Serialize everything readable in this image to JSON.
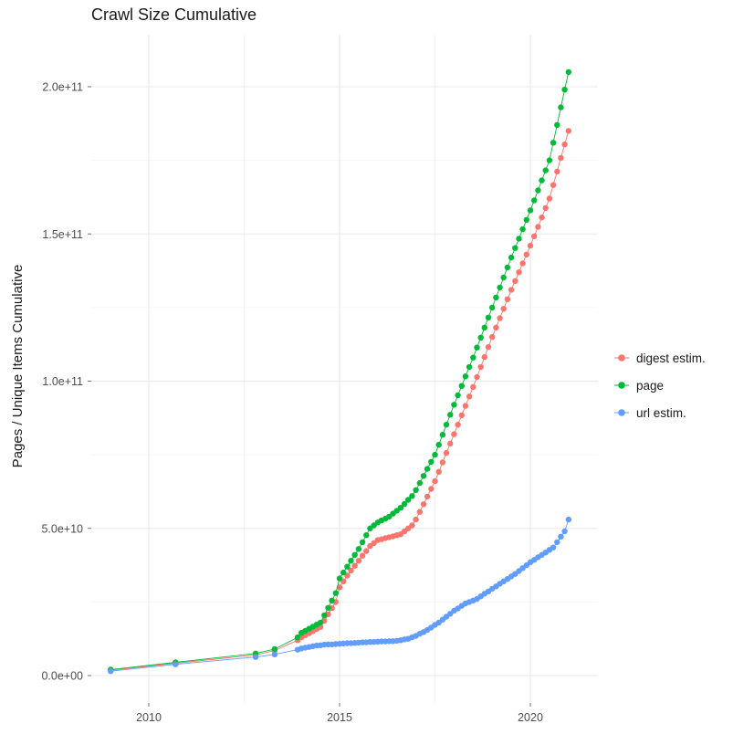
{
  "figure": {
    "background_color": "#ffffff",
    "panel_background": "#ffffff",
    "major_grid_color": "#e8e8e8",
    "minor_grid_color": "#f3f3f3",
    "tick_mark_color": "#707070",
    "tick_label_color": "#4d4d4d"
  },
  "chart_data": {
    "type": "scatter",
    "title": "Crawl Size Cumulative",
    "xlabel": "",
    "ylabel": "Pages / Unique Items Cumulative",
    "legend_position": "right",
    "grid": "major and minor gridlines, light gray on white",
    "x_ticks": [
      {
        "label": "2010",
        "value": 2010
      },
      {
        "label": "2015",
        "value": 2015
      },
      {
        "label": "2020",
        "value": 2020
      }
    ],
    "x_minor": [
      2012.5,
      2017.5
    ],
    "x_range": [
      2008.5,
      2021.8
    ],
    "y_value_unit": "1e9",
    "y_ticks": [
      {
        "label": "0.0e+00",
        "value": 0
      },
      {
        "label": "5.0e+10",
        "value": 50
      },
      {
        "label": "1.0e+11",
        "value": 100
      },
      {
        "label": "1.5e+11",
        "value": 150
      },
      {
        "label": "2.0e+11",
        "value": 200
      }
    ],
    "y_minor": [
      25,
      75,
      125,
      175
    ],
    "y_range": [
      -9,
      218
    ],
    "series": [
      {
        "name": "digest estim.",
        "color": "#F8766D",
        "points": [
          [
            2009.0,
            1.8
          ],
          [
            2010.7,
            4.2
          ],
          [
            2012.8,
            7
          ],
          [
            2013.3,
            8.5
          ],
          [
            2013.9,
            12
          ],
          [
            2014.0,
            13
          ],
          [
            2014.1,
            13.7
          ],
          [
            2014.2,
            14.4
          ],
          [
            2014.3,
            15.1
          ],
          [
            2014.4,
            15.8
          ],
          [
            2014.5,
            16.5
          ],
          [
            2014.6,
            18.6
          ],
          [
            2014.7,
            20.8
          ],
          [
            2014.8,
            22.9
          ],
          [
            2014.9,
            25
          ],
          [
            2015.0,
            30
          ],
          [
            2015.1,
            32
          ],
          [
            2015.2,
            34
          ],
          [
            2015.3,
            35.7
          ],
          [
            2015.4,
            37.3
          ],
          [
            2015.5,
            39
          ],
          [
            2015.6,
            40.7
          ],
          [
            2015.7,
            42.3
          ],
          [
            2015.8,
            44
          ],
          [
            2015.9,
            45
          ],
          [
            2016.0,
            46
          ],
          [
            2016.1,
            46.3
          ],
          [
            2016.2,
            46.7
          ],
          [
            2016.3,
            47
          ],
          [
            2016.4,
            47.3
          ],
          [
            2016.5,
            47.7
          ],
          [
            2016.6,
            48
          ],
          [
            2016.7,
            49
          ],
          [
            2016.8,
            50
          ],
          [
            2016.9,
            51
          ],
          [
            2017.0,
            53
          ],
          [
            2017.1,
            55.6
          ],
          [
            2017.2,
            58.2
          ],
          [
            2017.3,
            60.8
          ],
          [
            2017.4,
            63.4
          ],
          [
            2017.5,
            66
          ],
          [
            2017.6,
            69.2
          ],
          [
            2017.7,
            72.4
          ],
          [
            2017.8,
            75.6
          ],
          [
            2017.9,
            78.8
          ],
          [
            2018.0,
            82
          ],
          [
            2018.1,
            85.2
          ],
          [
            2018.2,
            88.4
          ],
          [
            2018.3,
            91.6
          ],
          [
            2018.4,
            94.8
          ],
          [
            2018.5,
            98
          ],
          [
            2018.6,
            101.4
          ],
          [
            2018.7,
            104.8
          ],
          [
            2018.8,
            108.2
          ],
          [
            2018.9,
            111.6
          ],
          [
            2019.0,
            115
          ],
          [
            2019.1,
            118.2
          ],
          [
            2019.2,
            121.4
          ],
          [
            2019.3,
            124.6
          ],
          [
            2019.4,
            127.8
          ],
          [
            2019.5,
            131
          ],
          [
            2019.6,
            134
          ],
          [
            2019.7,
            137
          ],
          [
            2019.8,
            140
          ],
          [
            2019.9,
            143
          ],
          [
            2020.0,
            146
          ],
          [
            2020.1,
            149.2
          ],
          [
            2020.2,
            152.4
          ],
          [
            2020.3,
            155.6
          ],
          [
            2020.4,
            158.8
          ],
          [
            2020.5,
            162
          ],
          [
            2020.6,
            166.6
          ],
          [
            2020.7,
            171.2
          ],
          [
            2020.8,
            175.8
          ],
          [
            2020.9,
            180.4
          ],
          [
            2021.0,
            185
          ]
        ]
      },
      {
        "name": "page",
        "color": "#00BA38",
        "points": [
          [
            2009.0,
            2
          ],
          [
            2010.7,
            4.5
          ],
          [
            2012.8,
            7.5
          ],
          [
            2013.3,
            9
          ],
          [
            2013.9,
            13
          ],
          [
            2014.0,
            14.5
          ],
          [
            2014.1,
            15.2
          ],
          [
            2014.2,
            15.9
          ],
          [
            2014.3,
            16.6
          ],
          [
            2014.4,
            17.3
          ],
          [
            2014.5,
            18
          ],
          [
            2014.6,
            20.5
          ],
          [
            2014.7,
            23
          ],
          [
            2014.8,
            25.5
          ],
          [
            2014.9,
            28
          ],
          [
            2015.0,
            33
          ],
          [
            2015.1,
            35
          ],
          [
            2015.2,
            37
          ],
          [
            2015.3,
            39
          ],
          [
            2015.4,
            41
          ],
          [
            2015.5,
            43
          ],
          [
            2015.6,
            45.3
          ],
          [
            2015.7,
            47.7
          ],
          [
            2015.8,
            50
          ],
          [
            2015.9,
            51
          ],
          [
            2016.0,
            52
          ],
          [
            2016.1,
            52.7
          ],
          [
            2016.2,
            53.3
          ],
          [
            2016.3,
            54
          ],
          [
            2016.4,
            55
          ],
          [
            2016.5,
            56
          ],
          [
            2016.6,
            57
          ],
          [
            2016.7,
            58.3
          ],
          [
            2016.8,
            59.7
          ],
          [
            2016.9,
            61
          ],
          [
            2017.0,
            63
          ],
          [
            2017.1,
            65.4
          ],
          [
            2017.2,
            67.8
          ],
          [
            2017.3,
            70.2
          ],
          [
            2017.4,
            72.6
          ],
          [
            2017.5,
            75
          ],
          [
            2017.6,
            78.4
          ],
          [
            2017.7,
            81.8
          ],
          [
            2017.8,
            85.2
          ],
          [
            2017.9,
            88.6
          ],
          [
            2018.0,
            92
          ],
          [
            2018.1,
            95.2
          ],
          [
            2018.2,
            98.4
          ],
          [
            2018.3,
            101.6
          ],
          [
            2018.4,
            104.8
          ],
          [
            2018.5,
            108
          ],
          [
            2018.6,
            111.4
          ],
          [
            2018.7,
            114.8
          ],
          [
            2018.8,
            118.2
          ],
          [
            2018.9,
            121.6
          ],
          [
            2019.0,
            125
          ],
          [
            2019.1,
            128.4
          ],
          [
            2019.2,
            131.8
          ],
          [
            2019.3,
            135.2
          ],
          [
            2019.4,
            138.6
          ],
          [
            2019.5,
            142
          ],
          [
            2019.6,
            145.2
          ],
          [
            2019.7,
            148.4
          ],
          [
            2019.8,
            151.6
          ],
          [
            2019.9,
            154.8
          ],
          [
            2020.0,
            158
          ],
          [
            2020.1,
            161.4
          ],
          [
            2020.2,
            164.8
          ],
          [
            2020.3,
            168.2
          ],
          [
            2020.4,
            171.6
          ],
          [
            2020.5,
            175
          ],
          [
            2020.6,
            181
          ],
          [
            2020.7,
            187
          ],
          [
            2020.8,
            193
          ],
          [
            2020.9,
            199
          ],
          [
            2021.0,
            205
          ]
        ]
      },
      {
        "name": "url estim.",
        "color": "#619CFF",
        "points": [
          [
            2009.0,
            1.5
          ],
          [
            2010.7,
            3.8
          ],
          [
            2012.8,
            6.3
          ],
          [
            2013.3,
            7.2
          ],
          [
            2013.9,
            8.8
          ],
          [
            2014.0,
            9.2
          ],
          [
            2014.1,
            9.5
          ],
          [
            2014.2,
            9.7
          ],
          [
            2014.3,
            10
          ],
          [
            2014.4,
            10.2
          ],
          [
            2014.5,
            10.3
          ],
          [
            2014.6,
            10.5
          ],
          [
            2014.7,
            10.6
          ],
          [
            2014.8,
            10.6
          ],
          [
            2014.9,
            10.7
          ],
          [
            2015.0,
            10.8
          ],
          [
            2015.1,
            10.9
          ],
          [
            2015.2,
            11
          ],
          [
            2015.3,
            11
          ],
          [
            2015.4,
            11.1
          ],
          [
            2015.5,
            11.2
          ],
          [
            2015.6,
            11.3
          ],
          [
            2015.7,
            11.3
          ],
          [
            2015.8,
            11.4
          ],
          [
            2015.9,
            11.4
          ],
          [
            2016.0,
            11.5
          ],
          [
            2016.1,
            11.6
          ],
          [
            2016.2,
            11.6
          ],
          [
            2016.3,
            11.7
          ],
          [
            2016.4,
            11.7
          ],
          [
            2016.5,
            11.8
          ],
          [
            2016.6,
            12
          ],
          [
            2016.7,
            12.3
          ],
          [
            2016.8,
            12.5
          ],
          [
            2016.9,
            13
          ],
          [
            2017.0,
            13.5
          ],
          [
            2017.1,
            14.2
          ],
          [
            2017.2,
            14.8
          ],
          [
            2017.3,
            15.5
          ],
          [
            2017.4,
            16.3
          ],
          [
            2017.5,
            17.2
          ],
          [
            2017.6,
            18
          ],
          [
            2017.7,
            19
          ],
          [
            2017.8,
            20
          ],
          [
            2017.9,
            21
          ],
          [
            2018.0,
            22
          ],
          [
            2018.1,
            22.8
          ],
          [
            2018.2,
            23.7
          ],
          [
            2018.3,
            24.5
          ],
          [
            2018.4,
            25
          ],
          [
            2018.5,
            25.5
          ],
          [
            2018.6,
            26
          ],
          [
            2018.7,
            26.9
          ],
          [
            2018.8,
            27.8
          ],
          [
            2018.9,
            28.6
          ],
          [
            2019.0,
            29.5
          ],
          [
            2019.1,
            30.3
          ],
          [
            2019.2,
            31.2
          ],
          [
            2019.3,
            32
          ],
          [
            2019.4,
            32.8
          ],
          [
            2019.5,
            33.7
          ],
          [
            2019.6,
            34.5
          ],
          [
            2019.7,
            35.5
          ],
          [
            2019.8,
            36.5
          ],
          [
            2019.9,
            37.5
          ],
          [
            2020.0,
            38.5
          ],
          [
            2020.1,
            39.3
          ],
          [
            2020.2,
            40.2
          ],
          [
            2020.3,
            41
          ],
          [
            2020.4,
            41.8
          ],
          [
            2020.5,
            42.7
          ],
          [
            2020.6,
            43.5
          ],
          [
            2020.7,
            45.3
          ],
          [
            2020.8,
            47.2
          ],
          [
            2020.9,
            49
          ],
          [
            2021.0,
            53
          ]
        ]
      }
    ]
  }
}
